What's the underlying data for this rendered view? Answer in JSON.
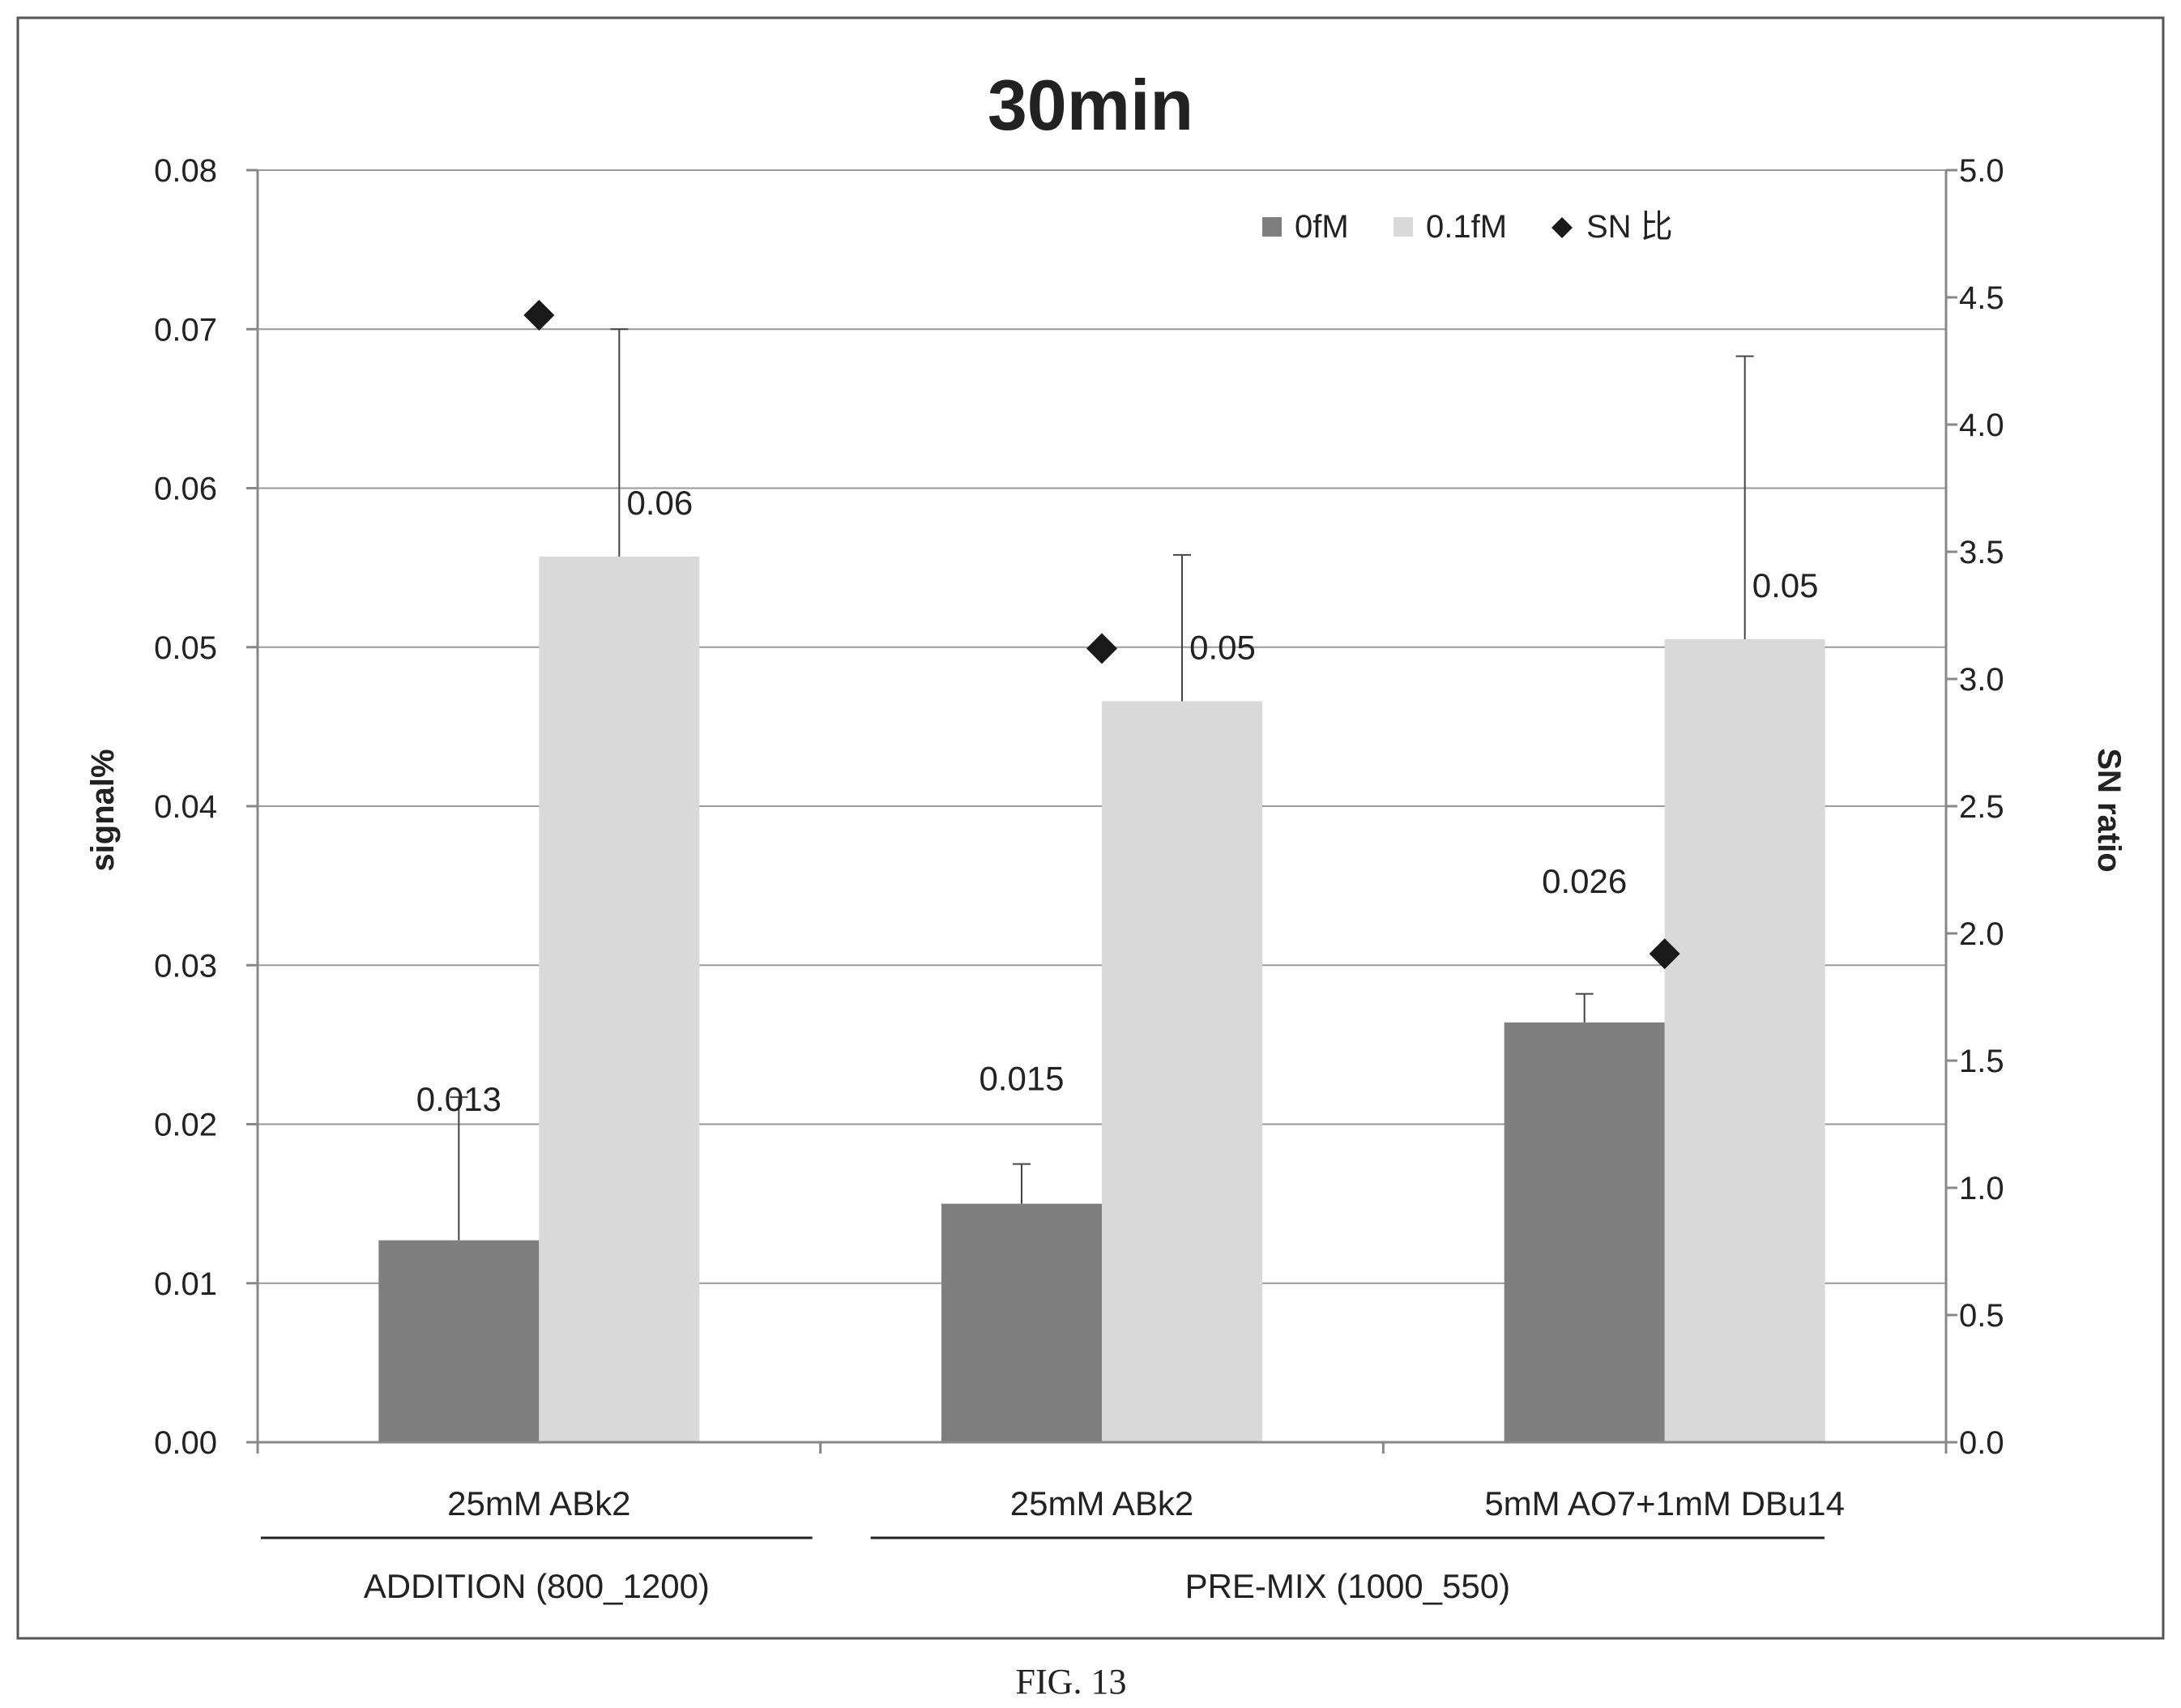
{
  "figure_caption": "FIG. 13",
  "chart_data": {
    "type": "bar",
    "title": "30min",
    "ylabel": "signal%",
    "y2label": "SN ratio",
    "ylim": [
      0,
      0.08
    ],
    "y2lim": [
      0,
      5.0
    ],
    "yticks": [
      "0.00",
      "0.01",
      "0.02",
      "0.03",
      "0.04",
      "0.05",
      "0.06",
      "0.07",
      "0.08"
    ],
    "y2ticks": [
      "0.0",
      "0.5",
      "1.0",
      "1.5",
      "2.0",
      "2.5",
      "3.0",
      "3.5",
      "4.0",
      "4.5",
      "5.0"
    ],
    "grid": true,
    "legend_position": "top-right",
    "categories": [
      "25mM ABk2",
      "25mM ABk2",
      "5mM AO7+1mM DBu14"
    ],
    "groups": [
      {
        "label": "ADDITION (800_1200)",
        "categories": [
          0
        ]
      },
      {
        "label": "PRE-MIX (1000_550)",
        "categories": [
          1,
          2
        ]
      }
    ],
    "series": [
      {
        "name": "0fM",
        "axis": "left",
        "color": "#7f7f7f",
        "values": [
          0.0127,
          0.015,
          0.0264
        ],
        "error_high": [
          0.0217,
          0.0175,
          0.0282
        ],
        "data_labels": [
          "0.013",
          "0.015",
          "0.026"
        ]
      },
      {
        "name": "0.1fM",
        "axis": "left",
        "color": "#d9d9d9",
        "values": [
          0.0557,
          0.0466,
          0.0505
        ],
        "error_high": [
          0.07,
          0.0558,
          0.0683
        ],
        "data_labels": [
          "0.06",
          "0.05",
          "0.05"
        ]
      },
      {
        "name": "SN 比",
        "axis": "right",
        "type": "scatter",
        "marker": "diamond",
        "color": "#1a1a1a",
        "values": [
          4.43,
          3.12,
          1.92
        ]
      }
    ]
  }
}
